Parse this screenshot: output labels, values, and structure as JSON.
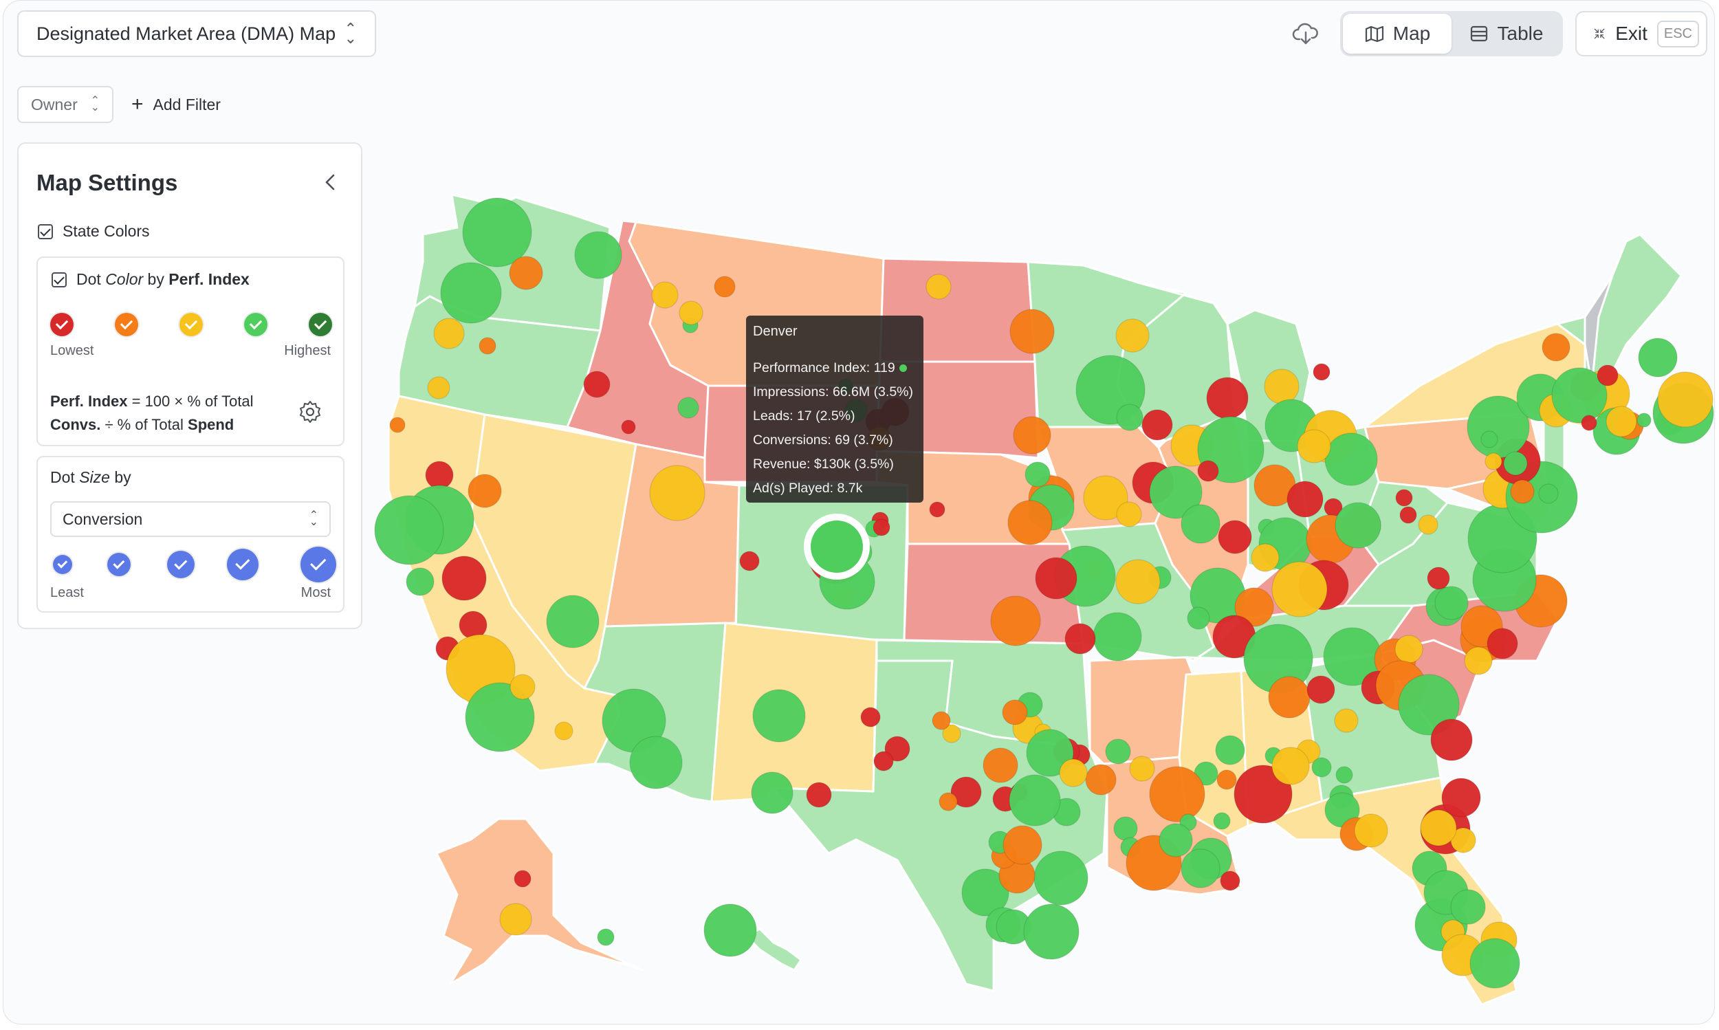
{
  "header": {
    "view_title": "Designated Market Area (DMA) Map",
    "toggle": {
      "map_label": "Map",
      "table_label": "Table",
      "active": "Map"
    },
    "exit_label": "Exit",
    "exit_key": "ESC",
    "icons": {
      "download": "cloud-download-icon",
      "map": "map-icon",
      "table": "table-icon",
      "exit": "collapse-icon"
    }
  },
  "filters": {
    "owner_label": "Owner",
    "add_filter_label": "Add Filter"
  },
  "settings": {
    "title": "Map Settings",
    "state_colors_label": "State Colors",
    "state_colors_checked": true,
    "dot_color": {
      "prefix": "Dot",
      "italic": "Color",
      "by": "by",
      "metric": "Perf. Index",
      "checked": true,
      "scale_colors": [
        "#d8292a",
        "#f57c16",
        "#f8c21c",
        "#4fce5e",
        "#2e7d32"
      ],
      "lowest_label": "Lowest",
      "highest_label": "Highest",
      "formula_metric": "Perf. Index",
      "formula_mid": "= 100 × % of Total",
      "formula_convs": "Convs.",
      "formula_div": "÷ % of Total",
      "formula_spend": "Spend"
    },
    "dot_size": {
      "prefix": "Dot",
      "italic": "Size",
      "by": "by",
      "selected": "Conversion",
      "least_label": "Least",
      "most_label": "Most",
      "color": "#5b79e6"
    }
  },
  "tooltip": {
    "city": "Denver",
    "performance_index": "Performance Index: 119",
    "impressions": "Impressions: 66.6M (3.5%)",
    "leads": "Leads: 17 (2.5%)",
    "conversions": "Conversions: 69 (3.7%)",
    "revenue": "Revenue: $130k (3.5%)",
    "ads_played": "Ad(s) Played: 8.7k"
  },
  "colors": {
    "state_green": "#aee6b3",
    "state_yellow": "#fde29c",
    "state_orange": "#fbbe96",
    "state_red": "#f09a96",
    "state_gray": "#c3c7cc",
    "dot_red": "#d8292a",
    "dot_orange": "#f57c16",
    "dot_yellow": "#f8c21c",
    "dot_green": "#4fce5e"
  }
}
